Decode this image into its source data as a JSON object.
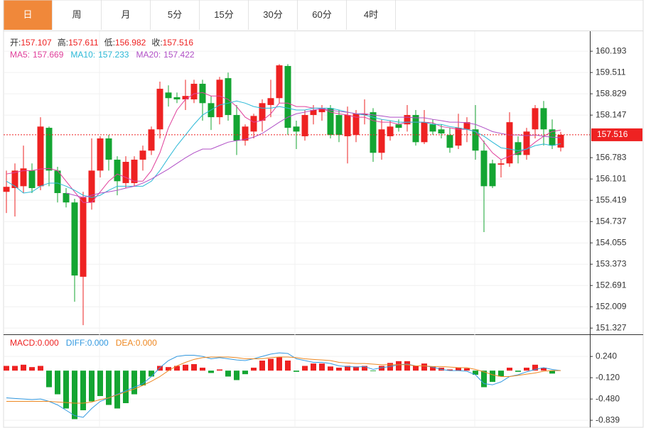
{
  "tabs": [
    "日",
    "周",
    "月",
    "5分",
    "15分",
    "30分",
    "60分",
    "4时"
  ],
  "active_tab": 0,
  "chart_data": [
    {
      "type": "candlestick",
      "ohlc_labels": [
        "开:",
        "高:",
        "低:",
        "收:"
      ],
      "up_color": "#ee2222",
      "down_color": "#14a532",
      "open": [
        155.69,
        155.81,
        155.87,
        156.37,
        155.87,
        157.74,
        156.37,
        155.65,
        155.35,
        152.97,
        155.35,
        156.37,
        157.4,
        156.72,
        155.97,
        155.97,
        156.72,
        157.01,
        157.69,
        158.87,
        158.72,
        158.65,
        158.65,
        159.15,
        158.53,
        158.08,
        159.33,
        158.15,
        157.33,
        157.62,
        157.97,
        158.47,
        158.69,
        159.72,
        157.78,
        157.47,
        158.15,
        158.24,
        158.37,
        158.15,
        157.47,
        157.51,
        158.15,
        158.24,
        156.94,
        157.47,
        157.85,
        157.85,
        158.15,
        157.28,
        157.85,
        157.69,
        157.51,
        157.17,
        157.69,
        157.69,
        157.01,
        156.6,
        156.56,
        156.6,
        157.28,
        156.87,
        157.69,
        158.37,
        157.69,
        157.107
      ],
      "high": [
        156.37,
        156.6,
        157.17,
        156.6,
        158.08,
        157.78,
        156.49,
        155.81,
        155.47,
        155.69,
        157.4,
        157.47,
        157.51,
        156.83,
        156.83,
        156.83,
        157.17,
        157.78,
        159.22,
        159.1,
        158.87,
        159.28,
        159.28,
        159.28,
        158.76,
        159.37,
        159.51,
        158.47,
        157.85,
        158.19,
        158.65,
        159.28,
        159.78,
        159.78,
        157.97,
        158.31,
        158.47,
        158.47,
        158.47,
        158.31,
        158.42,
        158.31,
        158.65,
        158.37,
        158.01,
        157.97,
        158.01,
        158.47,
        158.31,
        158.31,
        158.01,
        157.85,
        157.74,
        158.19,
        158.08,
        158.47,
        157.33,
        156.72,
        156.72,
        158.24,
        157.47,
        157.74,
        158.47,
        158.6,
        158.01,
        157.611
      ],
      "low": [
        155.01,
        154.9,
        155.65,
        155.65,
        155.74,
        155.87,
        155.35,
        155.19,
        152.17,
        151.42,
        155.12,
        156.15,
        156.37,
        155.58,
        155.81,
        155.87,
        156.37,
        156.87,
        157.4,
        158.42,
        158.53,
        158.31,
        158.53,
        157.97,
        157.67,
        157.85,
        157.97,
        156.87,
        157.17,
        157.4,
        157.62,
        158.08,
        158.53,
        157.51,
        157.06,
        157.33,
        157.85,
        157.97,
        157.4,
        157.28,
        156.6,
        157.28,
        157.85,
        156.65,
        156.72,
        157.33,
        157.62,
        157.62,
        157.17,
        157.22,
        157.51,
        157.4,
        156.94,
        157.06,
        157.28,
        156.72,
        154.4,
        155.81,
        156.15,
        156.49,
        156.6,
        156.72,
        157.4,
        157.17,
        157.06,
        156.982
      ],
      "close": [
        155.85,
        156.37,
        156.44,
        155.81,
        157.78,
        156.37,
        155.65,
        155.35,
        153.01,
        155.51,
        156.37,
        157.4,
        156.72,
        156.03,
        156.65,
        156.72,
        157.01,
        157.69,
        158.99,
        158.69,
        158.65,
        158.76,
        159.15,
        158.53,
        158.08,
        159.28,
        158.15,
        157.33,
        157.78,
        158.12,
        158.53,
        158.69,
        159.74,
        157.74,
        157.62,
        158.15,
        158.31,
        158.37,
        157.51,
        157.51,
        158.15,
        158.19,
        158.19,
        156.94,
        157.69,
        157.78,
        157.74,
        158.15,
        157.28,
        157.92,
        157.62,
        157.56,
        157.1,
        157.74,
        157.92,
        157.01,
        155.87,
        155.87,
        156.6,
        157.92,
        156.87,
        157.62,
        158.37,
        157.69,
        157.17,
        157.516
      ],
      "series": [
        {
          "name": "MA5:",
          "color": "#e0409b",
          "values": [
            156.26,
            156.31,
            156.37,
            156.37,
            156.42,
            156.44,
            156.37,
            156.03,
            155.69,
            155.35,
            155.35,
            155.69,
            156.03,
            156.26,
            156.15,
            156.03,
            156.03,
            156.37,
            156.94,
            157.74,
            158.31,
            158.65,
            158.83,
            158.87,
            158.76,
            158.76,
            158.65,
            158.42,
            158.08,
            157.92,
            157.97,
            158.19,
            158.53,
            158.53,
            158.42,
            158.42,
            158.37,
            158.37,
            158.24,
            158.19,
            158.15,
            158.08,
            158.08,
            157.97,
            157.92,
            157.92,
            157.85,
            157.92,
            157.92,
            157.92,
            157.9,
            157.78,
            157.74,
            157.69,
            157.69,
            157.62,
            157.28,
            156.94,
            156.72,
            156.83,
            156.94,
            157.06,
            157.28,
            157.47,
            157.62,
            157.669
          ]
        },
        {
          "name": "MA10:",
          "color": "#2bb8d6",
          "values": [
            156.03,
            155.87,
            155.65,
            155.69,
            155.87,
            155.97,
            155.97,
            155.87,
            155.74,
            155.58,
            155.51,
            155.58,
            155.74,
            155.87,
            155.87,
            155.87,
            155.87,
            156.03,
            156.37,
            156.78,
            157.17,
            157.51,
            157.85,
            158.15,
            158.31,
            158.47,
            158.53,
            158.6,
            158.53,
            158.42,
            158.37,
            158.37,
            158.42,
            158.37,
            158.31,
            158.31,
            158.37,
            158.37,
            158.37,
            158.31,
            158.24,
            158.19,
            158.15,
            158.08,
            158.01,
            157.97,
            157.92,
            157.92,
            157.92,
            157.92,
            157.85,
            157.85,
            157.78,
            157.74,
            157.69,
            157.62,
            157.47,
            157.28,
            157.1,
            157.06,
            157.01,
            157.06,
            157.17,
            157.22,
            157.17,
            157.233
          ]
        },
        {
          "name": "MA20:",
          "color": "#b04fc6",
          "values": [
            null,
            null,
            null,
            null,
            null,
            null,
            null,
            155.65,
            155.58,
            155.51,
            155.58,
            155.65,
            155.69,
            155.74,
            155.81,
            155.87,
            155.97,
            156.1,
            156.26,
            156.42,
            156.6,
            156.78,
            156.94,
            157.06,
            157.06,
            157.17,
            157.28,
            157.33,
            157.37,
            157.44,
            157.56,
            157.74,
            157.92,
            158.08,
            158.19,
            158.24,
            158.31,
            158.35,
            158.31,
            158.26,
            158.24,
            158.19,
            158.19,
            158.15,
            158.12,
            158.08,
            158.08,
            158.08,
            158.06,
            158.06,
            158.01,
            157.97,
            157.92,
            157.92,
            157.9,
            157.85,
            157.74,
            157.62,
            157.56,
            157.51,
            157.51,
            157.49,
            157.51,
            157.47,
            157.44,
            157.422
          ]
        }
      ],
      "ylim": [
        151.15,
        160.81
      ],
      "yticks": [
        160.193,
        159.511,
        158.829,
        158.147,
        156.783,
        156.101,
        155.419,
        154.737,
        154.055,
        153.373,
        152.691,
        152.009,
        151.327
      ],
      "grid": true
    },
    {
      "type": "macd",
      "ylim": [
        -0.97,
        0.59
      ],
      "yticks": [
        {
          "value": 0.24,
          "label": "0.240"
        },
        {
          "value": -0.12,
          "label": "-0.120"
        },
        {
          "value": -0.48,
          "label": "-0.480"
        },
        {
          "value": -0.839,
          "label": "-0.839"
        }
      ],
      "grid": true,
      "series": [
        {
          "name": "MACD:",
          "color": "#ee2222",
          "down_color": "#14a532",
          "last": {
            "value": 0,
            "label": "0.000"
          },
          "values": [
            0.08,
            0.08,
            0.1,
            0.06,
            0.08,
            -0.28,
            -0.4,
            -0.64,
            -0.82,
            -0.67,
            -0.52,
            -0.43,
            -0.58,
            -0.64,
            -0.55,
            -0.4,
            -0.25,
            -0.1,
            0.08,
            0.06,
            0.08,
            0.1,
            0.11,
            0.05,
            -0.04,
            0.02,
            -0.1,
            -0.16,
            -0.06,
            0.05,
            0.17,
            0.2,
            0.23,
            0.17,
            -0.02,
            0.08,
            0.12,
            0.12,
            0.07,
            0.05,
            0.08,
            0.07,
            0.08,
            -0.01,
            0.08,
            0.13,
            0.16,
            0.16,
            0.08,
            0.12,
            0.07,
            0.05,
            0.02,
            0.05,
            0.04,
            -0.07,
            -0.28,
            -0.19,
            -0.1,
            0.05,
            -0.02,
            0.05,
            0.1,
            0.05,
            -0.05,
            0
          ]
        },
        {
          "name": "DIFF:",
          "color": "#3399e0",
          "last": {
            "value": 0,
            "label": "0.000"
          },
          "values": [
            -0.46,
            -0.47,
            -0.48,
            -0.49,
            -0.48,
            -0.52,
            -0.58,
            -0.67,
            -0.76,
            -0.79,
            -0.64,
            -0.52,
            -0.46,
            -0.4,
            -0.34,
            -0.28,
            -0.22,
            -0.1,
            0.05,
            0.17,
            0.24,
            0.26,
            0.26,
            0.24,
            0.2,
            0.22,
            0.2,
            0.18,
            0.17,
            0.2,
            0.24,
            0.28,
            0.3,
            0.29,
            0.2,
            0.17,
            0.14,
            0.14,
            0.12,
            0.08,
            0.07,
            0.06,
            0.07,
            0.02,
            0.05,
            0.07,
            0.1,
            0.11,
            0.08,
            0.08,
            0.06,
            0.02,
            0,
            0,
            -0.01,
            -0.07,
            -0.22,
            -0.24,
            -0.19,
            -0.1,
            -0.07,
            -0.02,
            0.02,
            0.05,
            0.02,
            0
          ]
        },
        {
          "name": "DEA:",
          "color": "#ee8822",
          "last": {
            "value": 0,
            "label": "0.000"
          },
          "values": [
            -0.52,
            -0.52,
            -0.52,
            -0.52,
            -0.52,
            -0.52,
            -0.53,
            -0.54,
            -0.55,
            -0.55,
            -0.53,
            -0.49,
            -0.46,
            -0.41,
            -0.36,
            -0.31,
            -0.25,
            -0.18,
            -0.1,
            0,
            0.08,
            0.14,
            0.19,
            0.22,
            0.23,
            0.23,
            0.23,
            0.22,
            0.2,
            0.2,
            0.2,
            0.22,
            0.23,
            0.23,
            0.22,
            0.2,
            0.19,
            0.18,
            0.17,
            0.14,
            0.13,
            0.12,
            0.12,
            0.11,
            0.1,
            0.1,
            0.1,
            0.1,
            0.08,
            0.08,
            0.07,
            0.07,
            0.06,
            0.05,
            0.05,
            0.02,
            -0.02,
            -0.07,
            -0.1,
            -0.1,
            -0.08,
            -0.06,
            -0.04,
            -0.01,
            0,
            0
          ]
        }
      ]
    }
  ]
}
